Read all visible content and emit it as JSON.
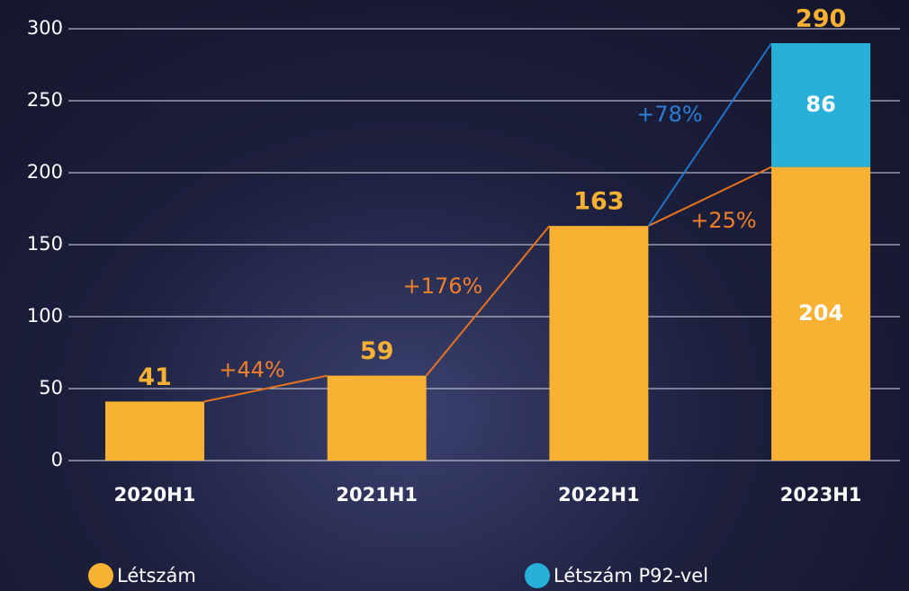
{
  "chart_data": {
    "type": "stacked_bar",
    "categories": [
      "2020H1",
      "2021H1",
      "2022H1",
      "2023H1"
    ],
    "series": [
      {
        "name": "Létszám",
        "color": "#f8b133",
        "values": [
          41,
          59,
          163,
          204
        ]
      },
      {
        "name": "Létszám P92-vel",
        "color": "#28b1d8",
        "values": [
          null,
          null,
          null,
          86
        ]
      }
    ],
    "total_labels": [
      null,
      null,
      null,
      290
    ],
    "annotations": [
      {
        "text": "+44%",
        "color": "#f07f2a"
      },
      {
        "text": "+176%",
        "color": "#f07f2a"
      },
      {
        "text": "+25%",
        "color": "#f07f2a"
      },
      {
        "text": "+78%",
        "color": "#2a7fd4"
      }
    ],
    "ylim": [
      0,
      300
    ],
    "yticks": [
      0,
      50,
      100,
      150,
      200,
      250,
      300
    ],
    "grid": true
  }
}
